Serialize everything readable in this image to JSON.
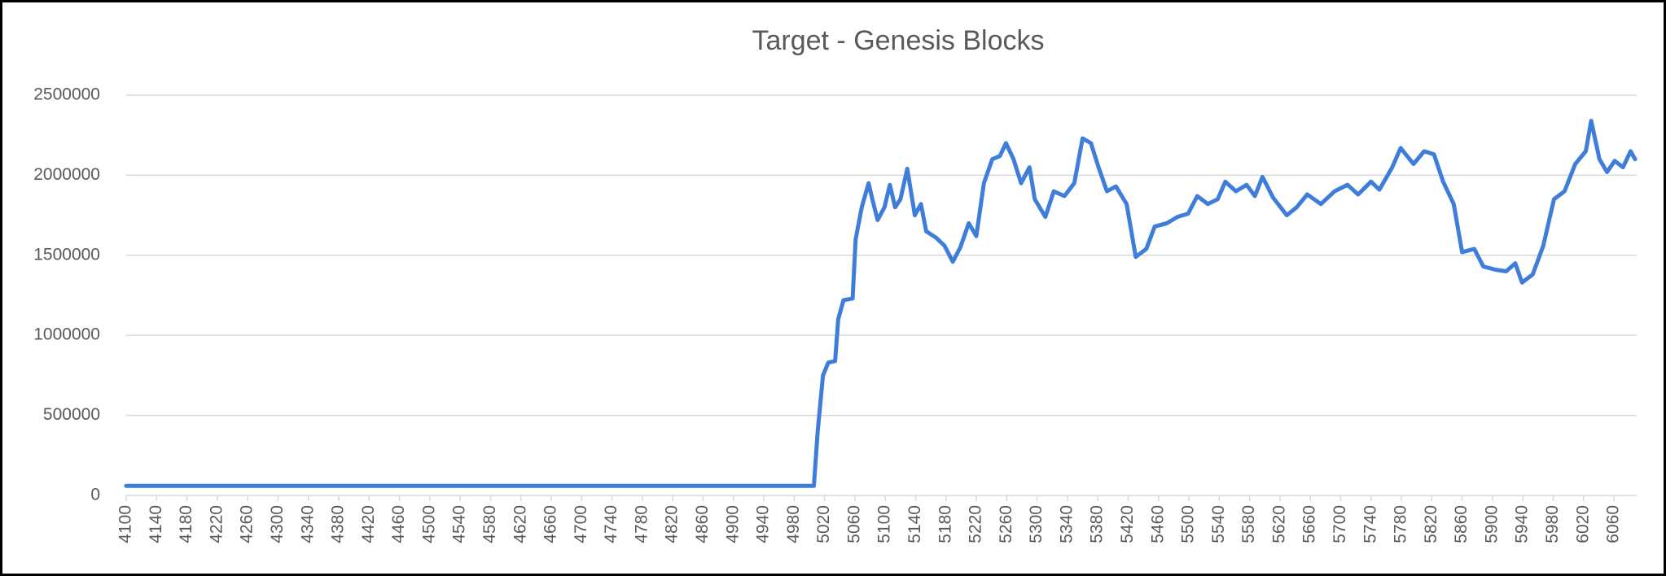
{
  "chart_data": {
    "type": "line",
    "title": "Target - Genesis Blocks",
    "x": [
      4100,
      5006,
      5011,
      5018,
      5025,
      5034,
      5038,
      5045,
      5057,
      5061,
      5069,
      5078,
      5083,
      5090,
      5099,
      5106,
      5113,
      5120,
      5129,
      5139,
      5147,
      5154,
      5167,
      5178,
      5189,
      5199,
      5210,
      5220,
      5230,
      5241,
      5251,
      5259,
      5269,
      5279,
      5290,
      5297,
      5311,
      5322,
      5336,
      5349,
      5360,
      5371,
      5381,
      5392,
      5404,
      5418,
      5430,
      5444,
      5455,
      5471,
      5485,
      5499,
      5511,
      5525,
      5538,
      5548,
      5562,
      5576,
      5587,
      5597,
      5611,
      5629,
      5642,
      5656,
      5674,
      5692,
      5709,
      5723,
      5740,
      5751,
      5768,
      5779,
      5796,
      5810,
      5823,
      5835,
      5849,
      5860,
      5876,
      5888,
      5904,
      5918,
      5930,
      5939,
      5953,
      5967,
      5981,
      5995,
      6009,
      6023,
      6030,
      6041,
      6051,
      6061,
      6072,
      6082,
      6088
    ],
    "values": [
      60000,
      60000,
      400000,
      750000,
      830000,
      840000,
      1100000,
      1220000,
      1230000,
      1600000,
      1800000,
      1950000,
      1850000,
      1720000,
      1800000,
      1940000,
      1800000,
      1850000,
      2040000,
      1750000,
      1820000,
      1650000,
      1610000,
      1560000,
      1460000,
      1550000,
      1700000,
      1620000,
      1950000,
      2100000,
      2120000,
      2200000,
      2100000,
      1950000,
      2050000,
      1850000,
      1740000,
      1900000,
      1870000,
      1950000,
      2230000,
      2200000,
      2050000,
      1900000,
      1930000,
      1820000,
      1490000,
      1540000,
      1680000,
      1700000,
      1740000,
      1760000,
      1870000,
      1820000,
      1850000,
      1960000,
      1900000,
      1940000,
      1870000,
      1990000,
      1860000,
      1750000,
      1800000,
      1880000,
      1820000,
      1900000,
      1940000,
      1880000,
      1960000,
      1910000,
      2050000,
      2170000,
      2070000,
      2150000,
      2130000,
      1960000,
      1820000,
      1520000,
      1540000,
      1430000,
      1410000,
      1400000,
      1450000,
      1330000,
      1380000,
      1560000,
      1850000,
      1900000,
      2070000,
      2150000,
      2340000,
      2100000,
      2020000,
      2090000,
      2050000,
      2150000,
      2100000
    ],
    "color": "#3f7ddb",
    "xlim": [
      4100,
      6090
    ],
    "xticks": [
      4100,
      4140,
      4180,
      4220,
      4260,
      4300,
      4340,
      4380,
      4420,
      4460,
      4500,
      4540,
      4580,
      4620,
      4660,
      4700,
      4740,
      4780,
      4820,
      4860,
      4900,
      4940,
      4980,
      5020,
      5060,
      5100,
      5140,
      5180,
      5220,
      5260,
      5300,
      5340,
      5380,
      5420,
      5460,
      5500,
      5540,
      5580,
      5620,
      5660,
      5700,
      5740,
      5780,
      5820,
      5860,
      5900,
      5940,
      5980,
      6020,
      6060
    ],
    "ylim": [
      0,
      2500000
    ],
    "yticks": [
      0,
      500000,
      1000000,
      1500000,
      2000000,
      2500000
    ],
    "grid": true
  }
}
